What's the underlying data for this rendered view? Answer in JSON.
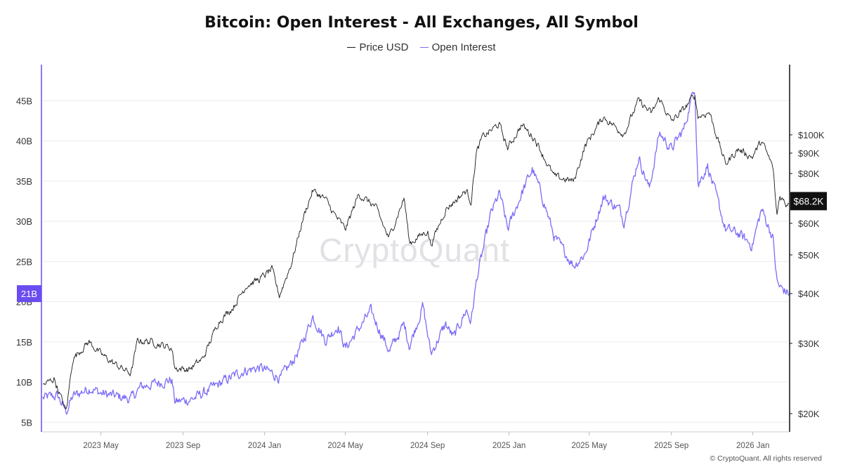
{
  "title": "Bitcoin: Open Interest - All Exchanges, All Symbol",
  "legend": {
    "price": "Price USD",
    "oi": "Open Interest"
  },
  "watermark": "CryptoQuant",
  "footer": "© CryptoQuant. All rights reserved",
  "colors": {
    "price": "#1a1a1a",
    "oi": "#7b6cf6",
    "oi_badge": "#6a4cf0",
    "price_badge": "#111111",
    "grid": "#ececec"
  },
  "chart_data": {
    "type": "line",
    "title": "Bitcoin: Open Interest - All Exchanges, All Symbol",
    "x_range": [
      "2023-02-01",
      "2026-02-25"
    ],
    "x_ticks": [
      {
        "date": "2023-05-01",
        "label": "2023 May"
      },
      {
        "date": "2023-09-01",
        "label": "2023 Sep"
      },
      {
        "date": "2024-01-01",
        "label": "2024 Jan"
      },
      {
        "date": "2024-05-01",
        "label": "2024 May"
      },
      {
        "date": "2024-09-01",
        "label": "2024 Sep"
      },
      {
        "date": "2025-01-01",
        "label": "2025 Jan"
      },
      {
        "date": "2025-05-01",
        "label": "2025 May"
      },
      {
        "date": "2025-09-01",
        "label": "2025 Sep"
      },
      {
        "date": "2026-01-01",
        "label": "2026 Jan"
      }
    ],
    "left_axis": {
      "scale": "linear",
      "range": [
        3.8,
        49.5
      ],
      "ticks": [
        5,
        10,
        15,
        20,
        25,
        30,
        35,
        40,
        45
      ],
      "tick_labels": [
        "5B",
        "10B",
        "15B",
        "20B",
        "25B",
        "30B",
        "35B",
        "40B",
        "45B"
      ],
      "current_label": "21B",
      "current_value": 21
    },
    "right_axis": {
      "scale": "log",
      "range": [
        18000,
        150000
      ],
      "ticks": [
        20000,
        30000,
        40000,
        50000,
        60000,
        80000,
        90000,
        100000
      ],
      "tick_labels": [
        "$20K",
        "$30K",
        "$40K",
        "$50K",
        "$60K",
        "$80K",
        "$90K",
        "$100K"
      ],
      "current_label": "$68.2K",
      "current_value": 68200
    },
    "grid": "horizontal",
    "legend_position": "top-center",
    "series": [
      {
        "name": "Price USD",
        "axis": "right",
        "color": "#1a1a1a",
        "points": [
          [
            "2023-02-03",
            23500
          ],
          [
            "2023-02-20",
            24500
          ],
          [
            "2023-03-10",
            20200
          ],
          [
            "2023-03-20",
            27500
          ],
          [
            "2023-04-13",
            30300
          ],
          [
            "2023-05-01",
            28200
          ],
          [
            "2023-05-25",
            26400
          ],
          [
            "2023-06-15",
            25200
          ],
          [
            "2023-06-25",
            30500
          ],
          [
            "2023-07-15",
            30300
          ],
          [
            "2023-08-15",
            29200
          ],
          [
            "2023-08-20",
            26000
          ],
          [
            "2023-09-10",
            25800
          ],
          [
            "2023-10-01",
            27500
          ],
          [
            "2023-10-24",
            34000
          ],
          [
            "2023-11-15",
            37000
          ],
          [
            "2023-12-05",
            42000
          ],
          [
            "2023-12-25",
            43500
          ],
          [
            "2024-01-12",
            46000
          ],
          [
            "2024-01-23",
            39500
          ],
          [
            "2024-02-10",
            47500
          ],
          [
            "2024-02-28",
            62000
          ],
          [
            "2024-03-13",
            72500
          ],
          [
            "2024-04-01",
            69000
          ],
          [
            "2024-04-15",
            63000
          ],
          [
            "2024-05-01",
            58000
          ],
          [
            "2024-05-21",
            71000
          ],
          [
            "2024-06-15",
            66000
          ],
          [
            "2024-07-05",
            55000
          ],
          [
            "2024-07-28",
            69500
          ],
          [
            "2024-08-05",
            53500
          ],
          [
            "2024-09-01",
            57500
          ],
          [
            "2024-09-06",
            53000
          ],
          [
            "2024-09-28",
            65000
          ],
          [
            "2024-10-29",
            72500
          ],
          [
            "2024-11-05",
            68000
          ],
          [
            "2024-11-13",
            90000
          ],
          [
            "2024-11-22",
            98500
          ],
          [
            "2024-12-17",
            106500
          ],
          [
            "2024-12-30",
            92500
          ],
          [
            "2025-01-20",
            106000
          ],
          [
            "2025-02-10",
            97000
          ],
          [
            "2025-02-28",
            84000
          ],
          [
            "2025-03-10",
            78500
          ],
          [
            "2025-04-08",
            76500
          ],
          [
            "2025-04-25",
            94000
          ],
          [
            "2025-05-22",
            111000
          ],
          [
            "2025-06-22",
            100500
          ],
          [
            "2025-07-14",
            122000
          ],
          [
            "2025-08-02",
            113000
          ],
          [
            "2025-08-14",
            123500
          ],
          [
            "2025-09-01",
            108000
          ],
          [
            "2025-09-20",
            116000
          ],
          [
            "2025-10-06",
            126000
          ],
          [
            "2025-10-11",
            111000
          ],
          [
            "2025-10-28",
            114000
          ],
          [
            "2025-11-21",
            84500
          ],
          [
            "2025-12-10",
            92000
          ],
          [
            "2025-12-31",
            88000
          ],
          [
            "2026-01-14",
            96500
          ],
          [
            "2026-01-31",
            83000
          ],
          [
            "2026-02-06",
            62500
          ],
          [
            "2026-02-10",
            70500
          ],
          [
            "2026-02-20",
            67000
          ],
          [
            "2026-02-24",
            68200
          ]
        ]
      },
      {
        "name": "Open Interest",
        "axis": "left",
        "color": "#7b6cf6",
        "points": [
          [
            "2023-02-03",
            8.0
          ],
          [
            "2023-02-25",
            8.3
          ],
          [
            "2023-03-10",
            6.3
          ],
          [
            "2023-03-20",
            8.2
          ],
          [
            "2023-04-15",
            9.3
          ],
          [
            "2023-05-01",
            8.6
          ],
          [
            "2023-05-25",
            8.2
          ],
          [
            "2023-06-15",
            7.9
          ],
          [
            "2023-06-30",
            9.4
          ],
          [
            "2023-07-15",
            9.7
          ],
          [
            "2023-08-15",
            10.3
          ],
          [
            "2023-08-20",
            7.5
          ],
          [
            "2023-09-15",
            7.9
          ],
          [
            "2023-10-10",
            9.0
          ],
          [
            "2023-11-01",
            10.1
          ],
          [
            "2023-12-01",
            11.4
          ],
          [
            "2023-12-25",
            11.8
          ],
          [
            "2024-01-10",
            11.2
          ],
          [
            "2024-01-25",
            10.5
          ],
          [
            "2024-02-10",
            12.3
          ],
          [
            "2024-02-25",
            14.5
          ],
          [
            "2024-03-13",
            18.2
          ],
          [
            "2024-04-01",
            15.2
          ],
          [
            "2024-04-20",
            17.0
          ],
          [
            "2024-05-01",
            14.2
          ],
          [
            "2024-05-20",
            16.5
          ],
          [
            "2024-06-08",
            18.8
          ],
          [
            "2024-06-25",
            15.8
          ],
          [
            "2024-07-06",
            13.8
          ],
          [
            "2024-07-28",
            17.2
          ],
          [
            "2024-08-05",
            14.5
          ],
          [
            "2024-08-25",
            19.5
          ],
          [
            "2024-09-06",
            13.5
          ],
          [
            "2024-09-28",
            17.2
          ],
          [
            "2024-10-10",
            15.5
          ],
          [
            "2024-10-29",
            19.0
          ],
          [
            "2024-11-05",
            17.5
          ],
          [
            "2024-11-14",
            23.0
          ],
          [
            "2024-11-22",
            26.0
          ],
          [
            "2024-12-05",
            31.0
          ],
          [
            "2024-12-18",
            33.5
          ],
          [
            "2024-12-30",
            29.0
          ],
          [
            "2025-01-20",
            33.5
          ],
          [
            "2025-02-05",
            36.5
          ],
          [
            "2025-02-20",
            33.0
          ],
          [
            "2025-03-10",
            28.0
          ],
          [
            "2025-04-08",
            24.5
          ],
          [
            "2025-04-25",
            26.0
          ],
          [
            "2025-05-22",
            33.0
          ],
          [
            "2025-06-15",
            31.5
          ],
          [
            "2025-06-22",
            30.0
          ],
          [
            "2025-07-14",
            38.0
          ],
          [
            "2025-07-30",
            34.0
          ],
          [
            "2025-08-14",
            41.0
          ],
          [
            "2025-09-01",
            39.0
          ],
          [
            "2025-09-20",
            41.5
          ],
          [
            "2025-10-06",
            47.0
          ],
          [
            "2025-10-11",
            34.5
          ],
          [
            "2025-10-25",
            37.0
          ],
          [
            "2025-11-21",
            29.0
          ],
          [
            "2025-12-10",
            28.5
          ],
          [
            "2025-12-31",
            27.0
          ],
          [
            "2026-01-14",
            31.5
          ],
          [
            "2026-01-31",
            28.0
          ],
          [
            "2026-02-06",
            22.5
          ],
          [
            "2026-02-10",
            21.8
          ],
          [
            "2026-02-24",
            21.0
          ]
        ]
      }
    ]
  }
}
